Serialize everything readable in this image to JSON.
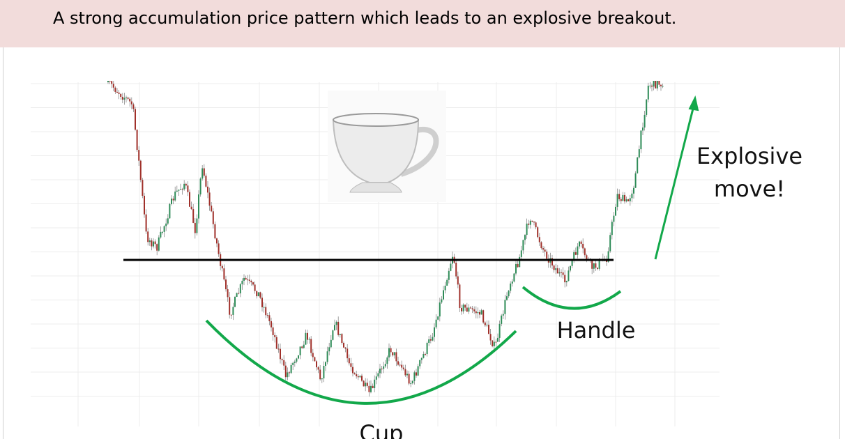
{
  "header": {
    "title": "A strong accumulation price pattern which leads to an explosive breakout."
  },
  "annotations": {
    "breakout": "Explosive move!",
    "handle": "Handle",
    "cup": "Cup"
  }
}
